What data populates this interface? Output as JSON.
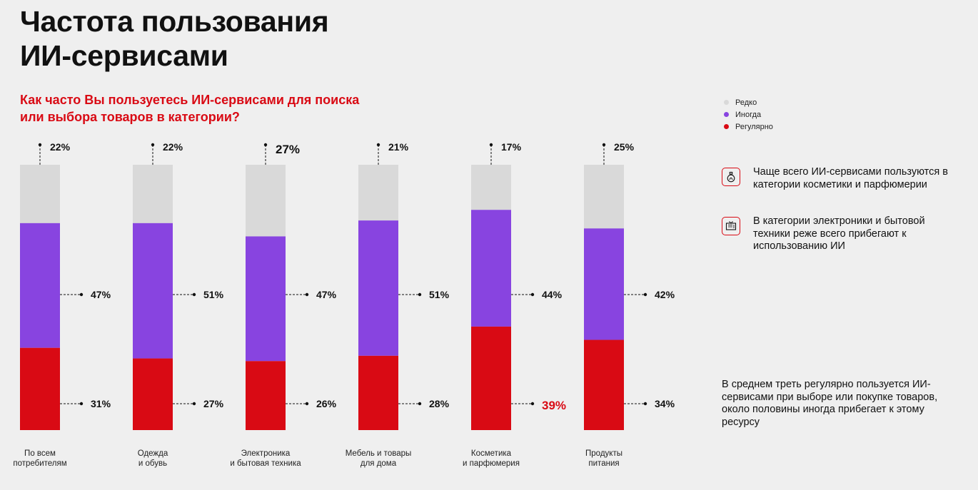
{
  "header": {
    "title_line1": "Частота пользования",
    "title_line2": "ИИ-сервисами",
    "subtitle_line1": "Как часто Вы пользуетесь ИИ-сервисами для поиска",
    "subtitle_line2": "или выбора товаров в категории?"
  },
  "legend": {
    "items": [
      {
        "label": "Редко",
        "color": "#d9d9d9"
      },
      {
        "label": "Иногда",
        "color": "#8844e0"
      },
      {
        "label": "Регулярно",
        "color": "#d90a14"
      }
    ]
  },
  "notes": [
    {
      "icon": "perfume-icon",
      "text": "Чаще всего ИИ-сервисами пользуются в категории косметики и парфюмерии"
    },
    {
      "icon": "tv-icon",
      "text": "В категории электроники и бытовой техники реже всего прибегают к использованию ИИ"
    }
  ],
  "summary": "В среднем треть регулярно пользуется ИИ-сервисами при выборе или покупке товаров, около половины иногда прибегает к этому ресурсу",
  "chart_data": {
    "type": "bar",
    "stacked": true,
    "unit": "%",
    "categories": [
      [
        "По всем",
        "потребителям"
      ],
      [
        "Одежда",
        "и обувь"
      ],
      [
        "Электроника",
        "и бытовая техника"
      ],
      [
        "Мебель и товары",
        "для дома"
      ],
      [
        "Косметика",
        "и парфюмерия"
      ],
      [
        "Продукты",
        "питания"
      ]
    ],
    "series": [
      {
        "name": "Регулярно",
        "color": "#d90a14",
        "values": [
          31,
          27,
          26,
          28,
          39,
          34
        ],
        "highlight_index": 4,
        "highlight_color": "#d90a14"
      },
      {
        "name": "Иногда",
        "color": "#8844e0",
        "values": [
          47,
          51,
          47,
          51,
          44,
          42
        ]
      },
      {
        "name": "Редко",
        "color": "#d9d9d9",
        "values": [
          22,
          22,
          27,
          21,
          17,
          25
        ],
        "highlight_index": 2
      }
    ],
    "ylim": [
      0,
      100
    ]
  }
}
